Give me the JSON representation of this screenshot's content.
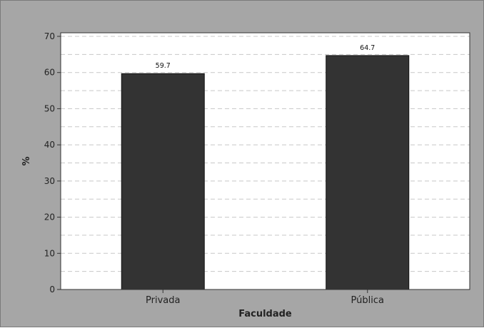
{
  "chart_data": {
    "type": "bar",
    "title": "",
    "xlabel": "Faculdade",
    "ylabel": "%",
    "categories": [
      "Privada",
      "Pública"
    ],
    "values": [
      59.7,
      64.7
    ],
    "value_labels": [
      "59.7",
      "64.7"
    ],
    "ylim": [
      0,
      70
    ],
    "yticks": [
      0,
      10,
      20,
      30,
      40,
      50,
      60,
      70
    ],
    "grid": true,
    "grid_style": "dashed",
    "legend": "none"
  },
  "colors": {
    "background": "#a6a6a6",
    "plot_background": "#ffffff",
    "bar_fill": "#333333",
    "bar_stroke": "#111111",
    "grid": "#c8c8c8",
    "axis": "#333333"
  }
}
